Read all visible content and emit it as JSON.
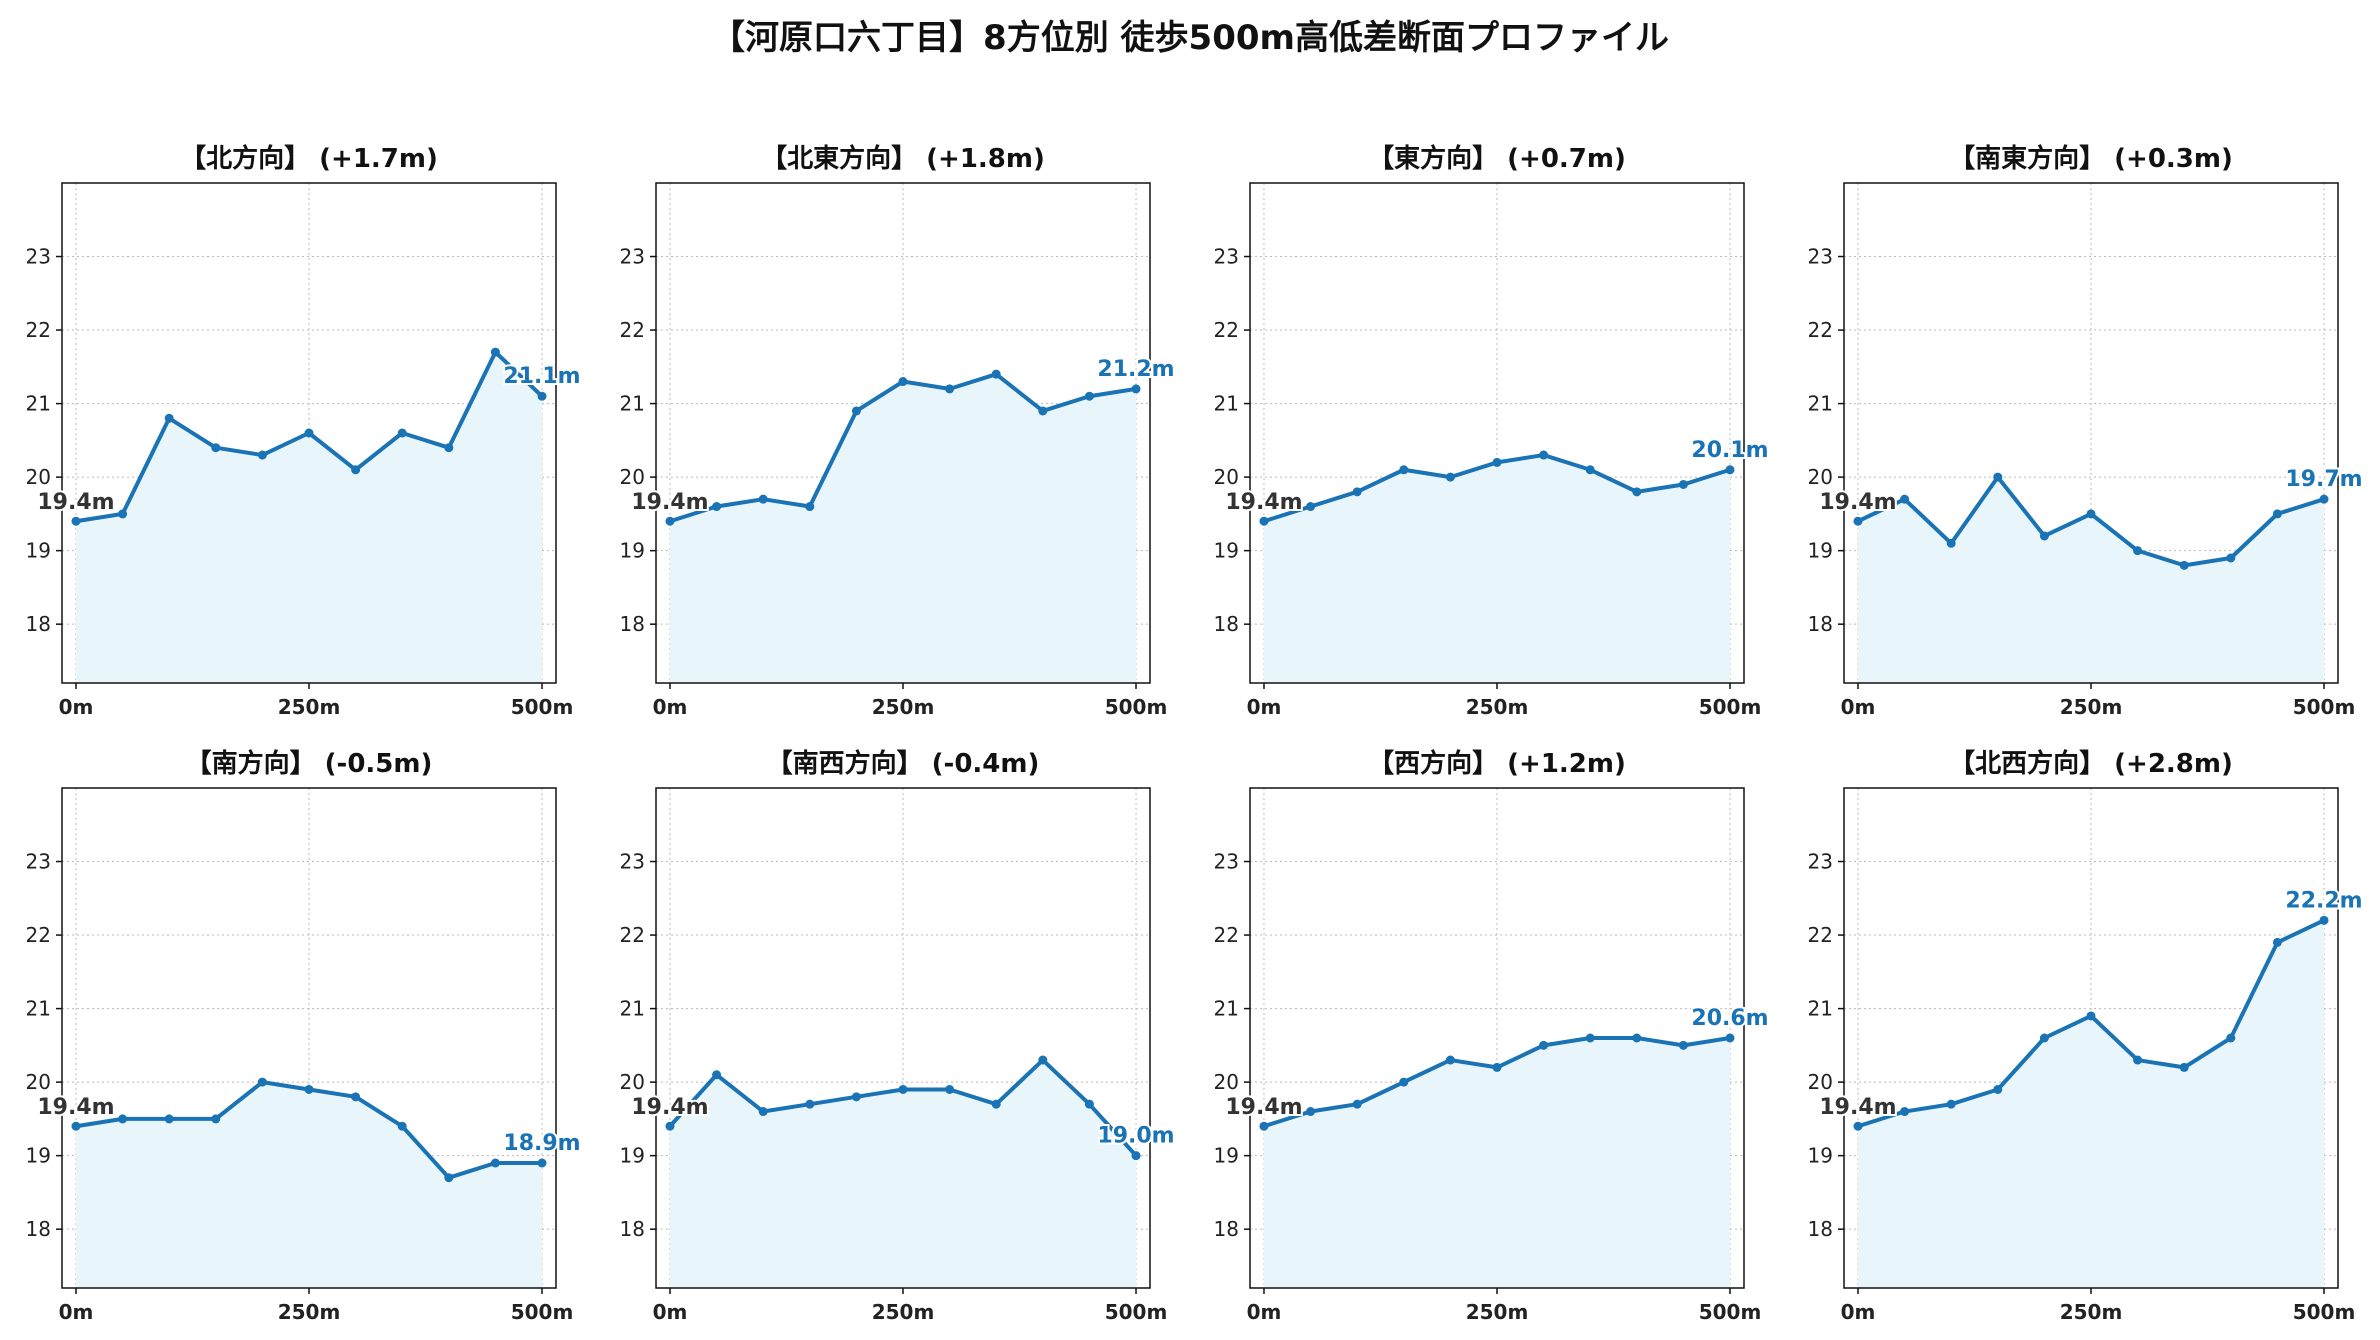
{
  "title": "【河原口六丁目】8方位別 徒歩500m高低差断面プロファイル",
  "colors": {
    "line": "#1a73b5",
    "fill": "#e8f6fc",
    "start_label": "#333333",
    "end_label": "#1a73b5",
    "grid": "#bbbbbb"
  },
  "chart_data": [
    {
      "type": "line",
      "title": "【北方向】 (+1.7m)",
      "x": [
        0,
        50,
        100,
        150,
        200,
        250,
        300,
        350,
        400,
        450,
        500
      ],
      "values": [
        19.4,
        19.5,
        20.8,
        20.4,
        20.3,
        20.6,
        20.1,
        20.6,
        20.4,
        21.7,
        21.1
      ],
      "start_label": "19.4m",
      "end_label": "21.1m",
      "xticks": [
        "0m",
        "250m",
        "500m"
      ],
      "xtick_values": [
        0,
        250,
        500
      ],
      "yticks": [
        18,
        19,
        20,
        21,
        22,
        23
      ],
      "xlim": [
        -15,
        515
      ],
      "ylim": [
        17.2,
        24.0
      ],
      "grid": true
    },
    {
      "type": "line",
      "title": "【北東方向】 (+1.8m)",
      "x": [
        0,
        50,
        100,
        150,
        200,
        250,
        300,
        350,
        400,
        450,
        500
      ],
      "values": [
        19.4,
        19.6,
        19.7,
        19.6,
        20.9,
        21.3,
        21.2,
        21.4,
        20.9,
        21.1,
        21.2
      ],
      "start_label": "19.4m",
      "end_label": "21.2m",
      "xticks": [
        "0m",
        "250m",
        "500m"
      ],
      "xtick_values": [
        0,
        250,
        500
      ],
      "yticks": [
        18,
        19,
        20,
        21,
        22,
        23
      ],
      "xlim": [
        -15,
        515
      ],
      "ylim": [
        17.2,
        24.0
      ],
      "grid": true
    },
    {
      "type": "line",
      "title": "【東方向】 (+0.7m)",
      "x": [
        0,
        50,
        100,
        150,
        200,
        250,
        300,
        350,
        400,
        450,
        500
      ],
      "values": [
        19.4,
        19.6,
        19.8,
        20.1,
        20.0,
        20.2,
        20.3,
        20.1,
        19.8,
        19.9,
        20.1
      ],
      "start_label": "19.4m",
      "end_label": "20.1m",
      "xticks": [
        "0m",
        "250m",
        "500m"
      ],
      "xtick_values": [
        0,
        250,
        500
      ],
      "yticks": [
        18,
        19,
        20,
        21,
        22,
        23
      ],
      "xlim": [
        -15,
        515
      ],
      "ylim": [
        17.2,
        24.0
      ],
      "grid": true
    },
    {
      "type": "line",
      "title": "【南東方向】 (+0.3m)",
      "x": [
        0,
        50,
        100,
        150,
        200,
        250,
        300,
        350,
        400,
        450,
        500
      ],
      "values": [
        19.4,
        19.7,
        19.1,
        20.0,
        19.2,
        19.5,
        19.0,
        18.8,
        18.9,
        19.5,
        19.7
      ],
      "start_label": "19.4m",
      "end_label": "19.7m",
      "xticks": [
        "0m",
        "250m",
        "500m"
      ],
      "xtick_values": [
        0,
        250,
        500
      ],
      "yticks": [
        18,
        19,
        20,
        21,
        22,
        23
      ],
      "xlim": [
        -15,
        515
      ],
      "ylim": [
        17.2,
        24.0
      ],
      "grid": true
    },
    {
      "type": "line",
      "title": "【南方向】 (-0.5m)",
      "x": [
        0,
        50,
        100,
        150,
        200,
        250,
        300,
        350,
        400,
        450,
        500
      ],
      "values": [
        19.4,
        19.5,
        19.5,
        19.5,
        20.0,
        19.9,
        19.8,
        19.4,
        18.7,
        18.9,
        18.9
      ],
      "start_label": "19.4m",
      "end_label": "18.9m",
      "xticks": [
        "0m",
        "250m",
        "500m"
      ],
      "xtick_values": [
        0,
        250,
        500
      ],
      "yticks": [
        18,
        19,
        20,
        21,
        22,
        23
      ],
      "xlim": [
        -15,
        515
      ],
      "ylim": [
        17.2,
        24.0
      ],
      "grid": true
    },
    {
      "type": "line",
      "title": "【南西方向】 (-0.4m)",
      "x": [
        0,
        50,
        100,
        150,
        200,
        250,
        300,
        350,
        400,
        450,
        500
      ],
      "values": [
        19.4,
        20.1,
        19.6,
        19.7,
        19.8,
        19.9,
        19.9,
        19.7,
        20.3,
        19.7,
        19.0
      ],
      "start_label": "19.4m",
      "end_label": "19.0m",
      "xticks": [
        "0m",
        "250m",
        "500m"
      ],
      "xtick_values": [
        0,
        250,
        500
      ],
      "yticks": [
        18,
        19,
        20,
        21,
        22,
        23
      ],
      "xlim": [
        -15,
        515
      ],
      "ylim": [
        17.2,
        24.0
      ],
      "grid": true
    },
    {
      "type": "line",
      "title": "【西方向】 (+1.2m)",
      "x": [
        0,
        50,
        100,
        150,
        200,
        250,
        300,
        350,
        400,
        450,
        500
      ],
      "values": [
        19.4,
        19.6,
        19.7,
        20.0,
        20.3,
        20.2,
        20.5,
        20.6,
        20.6,
        20.5,
        20.6
      ],
      "start_label": "19.4m",
      "end_label": "20.6m",
      "xticks": [
        "0m",
        "250m",
        "500m"
      ],
      "xtick_values": [
        0,
        250,
        500
      ],
      "yticks": [
        18,
        19,
        20,
        21,
        22,
        23
      ],
      "xlim": [
        -15,
        515
      ],
      "ylim": [
        17.2,
        24.0
      ],
      "grid": true
    },
    {
      "type": "line",
      "title": "【北西方向】 (+2.8m)",
      "x": [
        0,
        50,
        100,
        150,
        200,
        250,
        300,
        350,
        400,
        450,
        500
      ],
      "values": [
        19.4,
        19.6,
        19.7,
        19.9,
        20.6,
        20.9,
        20.3,
        20.2,
        20.6,
        21.9,
        22.2
      ],
      "start_label": "19.4m",
      "end_label": "22.2m",
      "xticks": [
        "0m",
        "250m",
        "500m"
      ],
      "xtick_values": [
        0,
        250,
        500
      ],
      "yticks": [
        18,
        19,
        20,
        21,
        22,
        23
      ],
      "xlim": [
        -15,
        515
      ],
      "ylim": [
        17.2,
        24.0
      ],
      "grid": true
    }
  ]
}
